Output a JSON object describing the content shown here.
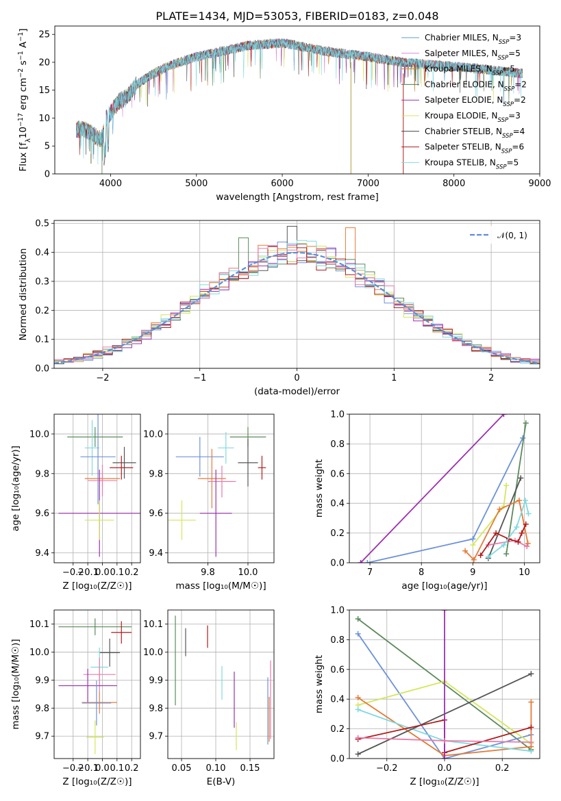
{
  "chart_data": [
    {
      "panel": "spectrum",
      "type": "line",
      "title": "PLATE=1434, MJD=53053, FIBERID=0183, z=0.048",
      "xlabel": "wavelength [Angstrom, rest frame]",
      "ylabel_parts": [
        "Flux [f",
        "λ",
        "10",
        "−17",
        " erg cm",
        "−2",
        " s",
        "−1",
        " A",
        "−1",
        "]"
      ],
      "xlim": [
        3350,
        9000
      ],
      "ylim": [
        0,
        26.5
      ],
      "xticks": [
        4000,
        5000,
        6000,
        7000,
        8000,
        9000
      ],
      "yticks": [
        0,
        5,
        10,
        15,
        20,
        25
      ],
      "x_range_data": [
        3600,
        8800
      ],
      "continuum_anchors": {
        "x": [
          3600,
          3700,
          3800,
          3900,
          3950,
          4000,
          4100,
          4200,
          4300,
          4400,
          4500,
          4700,
          5000,
          5300,
          5600,
          6000,
          6500,
          7000,
          7400,
          7800,
          8200,
          8800
        ],
        "y": [
          8,
          8,
          7,
          6,
          10,
          11,
          13,
          14,
          16,
          17,
          18,
          19.5,
          21,
          22,
          23,
          23.5,
          22,
          21,
          20,
          19.5,
          19,
          18
        ]
      },
      "legend_position": "top-right",
      "series": [
        {
          "name": "Chabrier MILES",
          "nssp": "3",
          "color": "#5b9fcf"
        },
        {
          "name": "Salpeter MILES",
          "nssp": "5",
          "color": "#d98ad6"
        },
        {
          "name": "Kroupa MILES",
          "nssp": "5",
          "color": "#c87a1c"
        },
        {
          "name": "Chabrier ELODIE",
          "nssp": "2",
          "color": "#4e7d4e"
        },
        {
          "name": "Salpeter ELODIE",
          "nssp": "2",
          "color": "#9b2fae"
        },
        {
          "name": "Kroupa ELODIE",
          "nssp": "3",
          "color": "#dde060"
        },
        {
          "name": "Chabrier STELIB",
          "nssp": "4",
          "color": "#404040"
        },
        {
          "name": "Salpeter STELIB",
          "nssp": "6",
          "color": "#b01c1c"
        },
        {
          "name": "Kroupa STELIB",
          "nssp": "5",
          "color": "#7fd9e0"
        }
      ]
    },
    {
      "panel": "residual-histogram",
      "type": "histogram",
      "xlabel": "(data-model)/error",
      "ylabel": "Normed distribution",
      "xlim": [
        -2.5,
        2.5
      ],
      "ylim": [
        0,
        0.51
      ],
      "xticks": [
        -2,
        -1,
        0,
        1,
        2
      ],
      "yticks": [
        0.0,
        0.1,
        0.2,
        0.3,
        0.4,
        0.5
      ],
      "grid": true,
      "bin_width": 0.1,
      "legend_entry": "𝒩(0, 1)",
      "legend_position": "top-right",
      "gaussian": {
        "mean": 0,
        "sigma": 1,
        "color": "#5b8ed6"
      },
      "step_colors": [
        "#6c91db",
        "#e57a37",
        "#5a8a5a",
        "#9b2fae",
        "#d3e65a",
        "#555555",
        "#b01c1c",
        "#7fd9e0",
        "#e87aa8"
      ]
    },
    {
      "panel": "age-vs-Z",
      "type": "errorbar",
      "xlabel": "Z [log₁₀(Z/Z☉)]",
      "ylabel": "age  [log₁₀(age/yr)]",
      "xlim": [
        -0.33,
        0.26
      ],
      "ylim": [
        9.35,
        10.1
      ],
      "xticks": [
        -0.2,
        -0.1,
        0.0,
        0.1,
        0.2
      ],
      "yticks": [
        9.4,
        9.6,
        9.8,
        10.0
      ],
      "points": [
        {
          "x": -0.05,
          "y": 9.985,
          "xe": 0.19,
          "ye": 0.05,
          "color": "#5a8a5a"
        },
        {
          "x": -0.07,
          "y": 9.93,
          "xe": 0.05,
          "ye": 0.14,
          "color": "#7fd9e0"
        },
        {
          "x": -0.03,
          "y": 9.885,
          "xe": 0.12,
          "ye": 0.24,
          "color": "#6c91db"
        },
        {
          "x": 0.15,
          "y": 9.855,
          "xe": 0.08,
          "ye": 0.08,
          "color": "#555555"
        },
        {
          "x": 0.13,
          "y": 9.83,
          "xe": 0.08,
          "ye": 0.06,
          "color": "#b01c1c"
        },
        {
          "x": 0.0,
          "y": 9.775,
          "xe": 0.12,
          "ye": 0.04,
          "color": "#e57a37"
        },
        {
          "x": 0.0,
          "y": 9.765,
          "xe": 0.1,
          "ye": 0.08,
          "color": "#e87aa8"
        },
        {
          "x": -0.02,
          "y": 9.6,
          "xe": 0.28,
          "ye": 0.22,
          "color": "#9b2fae"
        },
        {
          "x": -0.02,
          "y": 9.565,
          "xe": 0.1,
          "ye": 0.1,
          "color": "#d3e65a"
        }
      ]
    },
    {
      "panel": "age-vs-mass",
      "type": "errorbar",
      "xlabel": "mass [log₁₀(M/M☉)]",
      "xlim": [
        9.6,
        10.13
      ],
      "ylim": [
        9.35,
        10.1
      ],
      "xticks": [
        9.8,
        10.0
      ],
      "yticks": [
        9.4,
        9.6,
        9.8,
        10.0
      ],
      "points": [
        {
          "x": 10.0,
          "y": 9.985,
          "xe": 0.09,
          "ye": 0.05,
          "color": "#5a8a5a"
        },
        {
          "x": 9.89,
          "y": 9.93,
          "xe": 0.04,
          "ye": 0.08,
          "color": "#7fd9e0"
        },
        {
          "x": 9.76,
          "y": 9.885,
          "xe": 0.12,
          "ye": 0.1,
          "color": "#6c91db"
        },
        {
          "x": 10.0,
          "y": 9.855,
          "xe": 0.05,
          "ye": 0.12,
          "color": "#555555"
        },
        {
          "x": 10.07,
          "y": 9.83,
          "xe": 0.02,
          "ye": 0.06,
          "color": "#b01c1c"
        },
        {
          "x": 9.82,
          "y": 9.775,
          "xe": 0.07,
          "ye": 0.15,
          "color": "#e57a37"
        },
        {
          "x": 9.87,
          "y": 9.76,
          "xe": 0.07,
          "ye": 0.08,
          "color": "#e87aa8"
        },
        {
          "x": 9.84,
          "y": 9.6,
          "xe": 0.08,
          "ye": 0.22,
          "color": "#9b2fae"
        },
        {
          "x": 9.67,
          "y": 9.565,
          "xe": 0.07,
          "ye": 0.1,
          "color": "#d3e65a"
        }
      ]
    },
    {
      "panel": "mass-weight-vs-age",
      "type": "line",
      "xlabel": "age  [log₁₀(age/yr)]",
      "ylabel": "mass weight",
      "xlim": [
        6.6,
        10.3
      ],
      "ylim": [
        0,
        1.0
      ],
      "xticks": [
        7,
        8,
        9,
        10
      ],
      "yticks": [
        0.0,
        0.2,
        0.4,
        0.6,
        0.8,
        1.0
      ],
      "series": [
        {
          "color": "#9b2fae",
          "x": [
            6.82,
            9.6
          ],
          "y": [
            0.0,
            1.0
          ]
        },
        {
          "color": "#6c91db",
          "x": [
            6.95,
            9.0,
            9.97
          ],
          "y": [
            0.0,
            0.16,
            0.84
          ]
        },
        {
          "color": "#5a8a5a",
          "x": [
            9.65,
            10.03
          ],
          "y": [
            0.06,
            0.94
          ]
        },
        {
          "color": "#555555",
          "x": [
            9.3,
            9.93
          ],
          "y": [
            0.03,
            0.57
          ]
        },
        {
          "color": "#d3e65a",
          "x": [
            9.0,
            9.6,
            9.65
          ],
          "y": [
            0.12,
            0.38,
            0.52
          ]
        },
        {
          "color": "#e57a37",
          "x": [
            8.85,
            9.02,
            9.52,
            9.9,
            10.07
          ],
          "y": [
            0.08,
            0.02,
            0.36,
            0.42,
            0.13
          ]
        },
        {
          "color": "#e87aa8",
          "x": [
            9.3,
            9.82,
            10.05
          ],
          "y": [
            0.12,
            0.15,
            0.11
          ]
        },
        {
          "color": "#b01c1c",
          "x": [
            9.15,
            9.45,
            9.7,
            9.88,
            9.95,
            10.03
          ],
          "y": [
            0.05,
            0.2,
            0.16,
            0.14,
            0.2,
            0.26
          ]
        },
        {
          "color": "#7fd9e0",
          "x": [
            9.3,
            9.6,
            9.85,
            10.02,
            10.08
          ],
          "y": [
            0.04,
            0.12,
            0.24,
            0.42,
            0.33
          ]
        }
      ]
    },
    {
      "panel": "mass-vs-Z",
      "type": "errorbar",
      "xlabel": "Z [log₁₀(Z/Z☉)]",
      "ylabel": "mass [log₁₀(M/M☉)]",
      "xlim": [
        -0.33,
        0.26
      ],
      "ylim": [
        9.62,
        10.15
      ],
      "xticks": [
        -0.2,
        -0.1,
        0.0,
        0.1,
        0.2
      ],
      "yticks": [
        9.7,
        9.8,
        9.9,
        10.0,
        10.1
      ],
      "points": [
        {
          "x": -0.05,
          "y": 10.09,
          "xe": 0.25,
          "ye": 0.03,
          "color": "#5a8a5a"
        },
        {
          "x": 0.13,
          "y": 10.07,
          "xe": 0.07,
          "ye": 0.04,
          "color": "#b01c1c"
        },
        {
          "x": 0.05,
          "y": 9.998,
          "xe": 0.07,
          "ye": 0.05,
          "color": "#555555"
        },
        {
          "x": -0.02,
          "y": 9.946,
          "xe": 0.06,
          "ye": 0.07,
          "color": "#7fd9e0"
        },
        {
          "x": -0.02,
          "y": 9.92,
          "xe": 0.11,
          "ye": 0.06,
          "color": "#e87aa8"
        },
        {
          "x": -0.1,
          "y": 9.88,
          "xe": 0.2,
          "ye": 0.06,
          "color": "#9b2fae"
        },
        {
          "x": -0.02,
          "y": 9.82,
          "xe": 0.12,
          "ye": 0.04,
          "color": "#e57a37"
        },
        {
          "x": -0.04,
          "y": 9.818,
          "xe": 0.1,
          "ye": 0.08,
          "color": "#6c91db"
        },
        {
          "x": -0.05,
          "y": 9.696,
          "xe": 0.06,
          "ye": 0.06,
          "color": "#d3e65a"
        }
      ]
    },
    {
      "panel": "mass-vs-EBV",
      "type": "errorbar",
      "xlabel": "E(B-V)",
      "xlim": [
        0.03,
        0.185
      ],
      "ylim": [
        9.62,
        10.15
      ],
      "xticks": [
        0.05,
        0.1,
        0.15
      ],
      "yticks": [
        9.7,
        9.8,
        9.9,
        10.0,
        10.1
      ],
      "points": [
        {
          "x": 0.041,
          "y": 9.97,
          "xe": 0.0,
          "ye": 0.16,
          "color": "#5a8a5a"
        },
        {
          "x": 0.056,
          "y": 10.035,
          "xe": 0.0,
          "ye": 0.05,
          "color": "#555555"
        },
        {
          "x": 0.088,
          "y": 10.055,
          "xe": 0.0,
          "ye": 0.04,
          "color": "#b01c1c"
        },
        {
          "x": 0.109,
          "y": 9.89,
          "xe": 0.0,
          "ye": 0.06,
          "color": "#7fd9e0"
        },
        {
          "x": 0.127,
          "y": 9.83,
          "xe": 0.0,
          "ye": 0.1,
          "color": "#9b2fae"
        },
        {
          "x": 0.13,
          "y": 9.7,
          "xe": 0.0,
          "ye": 0.05,
          "color": "#d3e65a"
        },
        {
          "x": 0.176,
          "y": 9.79,
          "xe": 0.0,
          "ye": 0.12,
          "color": "#6c91db"
        },
        {
          "x": 0.18,
          "y": 9.83,
          "xe": 0.0,
          "ye": 0.14,
          "color": "#e87aa8"
        },
        {
          "x": 0.178,
          "y": 9.76,
          "xe": 0.0,
          "ye": 0.08,
          "color": "#e57a37"
        }
      ]
    },
    {
      "panel": "mass-weight-vs-Z",
      "type": "line",
      "xlabel": "Z [log₁₀(Z/Z☉)]",
      "ylabel": "mass weight",
      "xlim": [
        -0.33,
        0.33
      ],
      "ylim": [
        0,
        1.0
      ],
      "xticks": [
        -0.2,
        0.0,
        0.2
      ],
      "yticks": [
        0.0,
        0.2,
        0.4,
        0.6,
        0.8,
        1.0
      ],
      "series": [
        {
          "color": "#5a8a5a",
          "x": [
            -0.3,
            0.3
          ],
          "y": [
            0.94,
            0.06
          ]
        },
        {
          "color": "#6c91db",
          "x": [
            -0.3,
            0.0,
            0.3
          ],
          "y": [
            0.84,
            0.0,
            0.16
          ]
        },
        {
          "color": "#d3e65a",
          "x": [
            -0.3,
            0.0,
            0.3
          ],
          "y": [
            0.36,
            0.52,
            0.1
          ]
        },
        {
          "color": "#e57a37",
          "x": [
            -0.3,
            0.0,
            0.3,
            0.3
          ],
          "y": [
            0.41,
            0.02,
            0.08,
            0.38
          ]
        },
        {
          "color": "#7fd9e0",
          "x": [
            -0.3,
            0.0,
            0.3
          ],
          "y": [
            0.33,
            0.12,
            0.05
          ]
        },
        {
          "color": "#555555",
          "x": [
            -0.3,
            0.3
          ],
          "y": [
            0.03,
            0.57
          ]
        },
        {
          "color": "#b01c1c",
          "x": [
            -0.3,
            0.0,
            0.0,
            0.3
          ],
          "y": [
            0.13,
            0.26,
            0.04,
            0.21
          ]
        },
        {
          "color": "#9b2fae",
          "x": [
            0.0,
            0.0
          ],
          "y": [
            0.0,
            1.0
          ]
        },
        {
          "color": "#e87aa8",
          "x": [
            -0.3,
            0.0,
            0.3
          ],
          "y": [
            0.14,
            0.12,
            0.11
          ]
        }
      ]
    }
  ]
}
